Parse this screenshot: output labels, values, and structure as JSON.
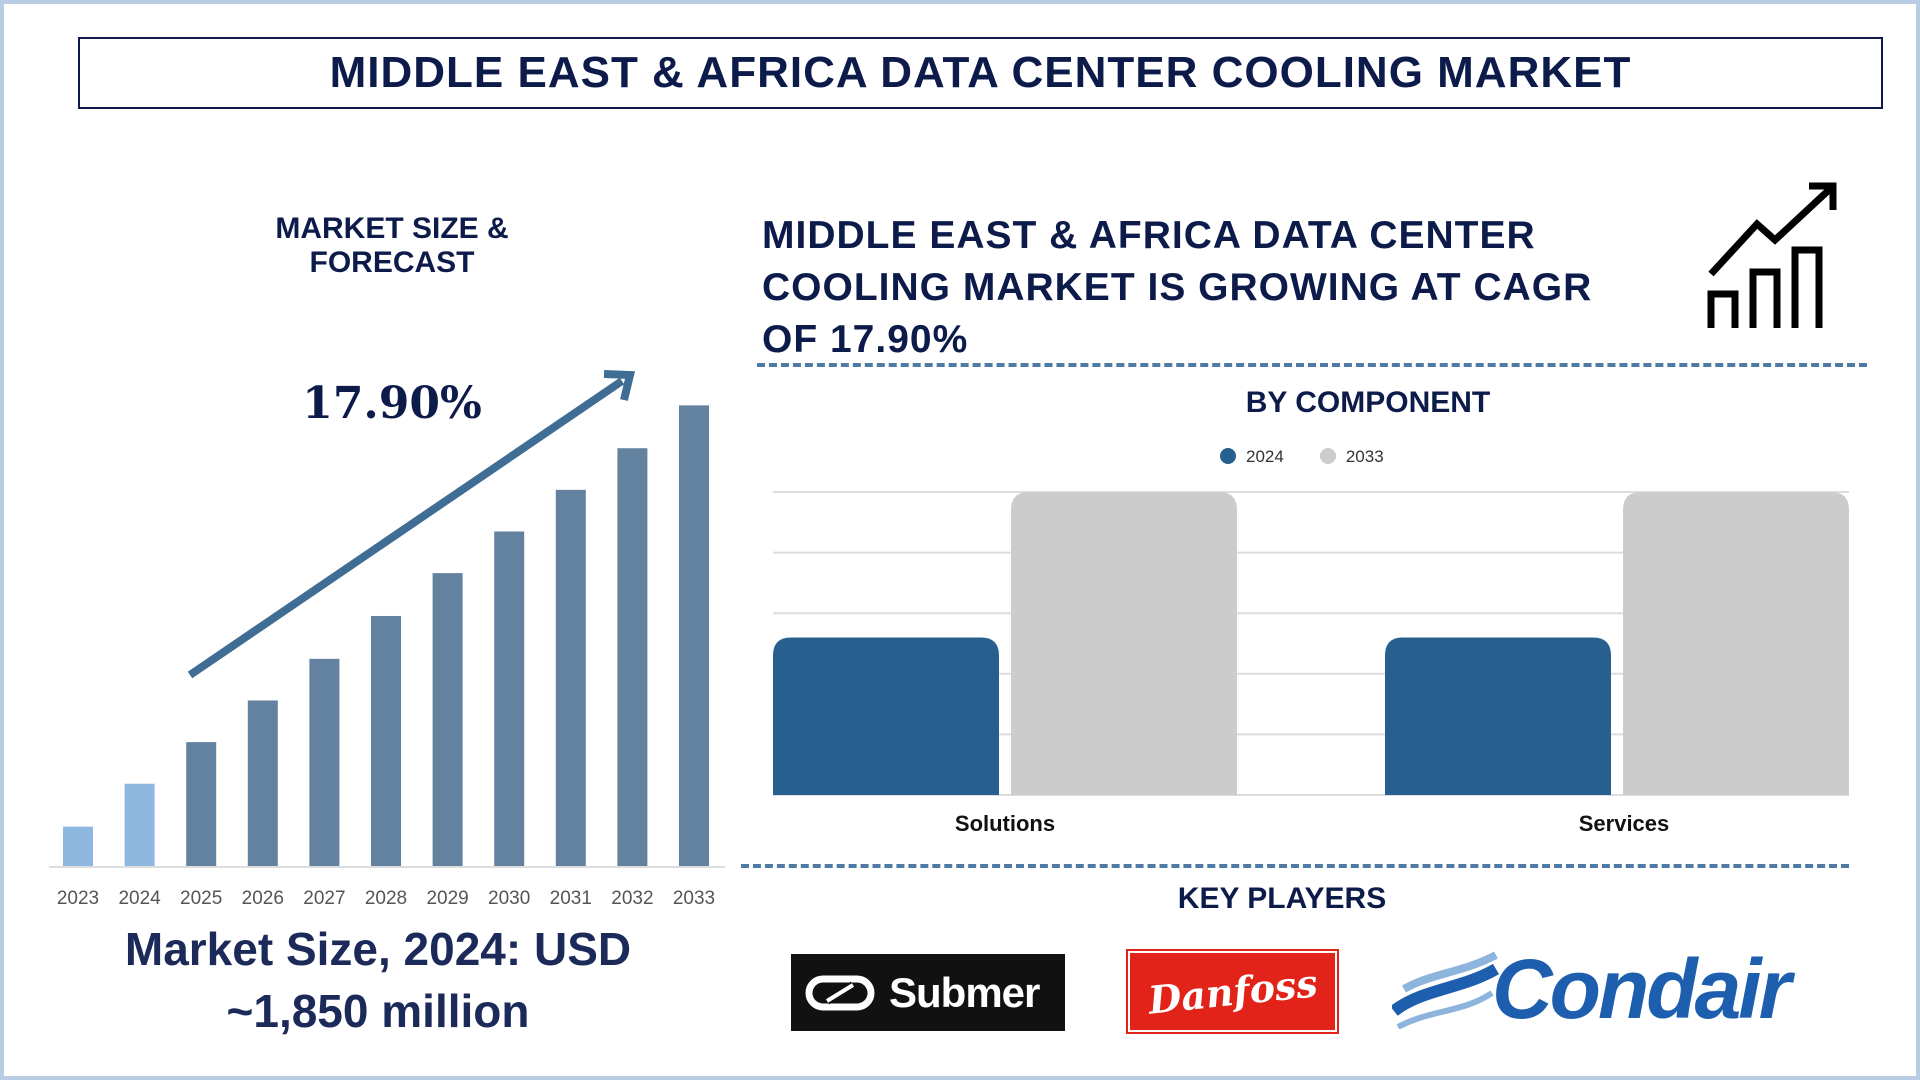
{
  "title": "MIDDLE EAST & AFRICA DATA CENTER COOLING MARKET",
  "left": {
    "heading": "MARKET SIZE & FORECAST",
    "cagr_label": "17.90%",
    "market_size_line1": "Market Size, 2024: USD",
    "market_size_line2": "~1,850 million"
  },
  "right": {
    "heading_lines": [
      "MIDDLE EAST & AFRICA DATA CENTER",
      "COOLING MARKET IS GROWING AT CAGR",
      "OF 17.90%"
    ],
    "icon": "growth-chart-arrow-icon",
    "key_players_heading": "KEY PLAYERS",
    "key_players": [
      "Submer",
      "Danfoss",
      "Condair"
    ]
  },
  "chart_data": [
    {
      "type": "bar",
      "title": "MARKET SIZE & FORECAST",
      "categories": [
        "2023",
        "2024",
        "2025",
        "2026",
        "2027",
        "2028",
        "2029",
        "2030",
        "2031",
        "2032",
        "2033"
      ],
      "values": [
        33,
        68,
        102,
        136,
        170,
        205,
        240,
        274,
        308,
        342,
        377
      ],
      "note_colors": {
        "historic": "#8fb8e0",
        "forecast": "#62829f"
      },
      "grid": false
    },
    {
      "type": "bar",
      "title": "BY COMPONENT",
      "categories": [
        "Solutions",
        "Services"
      ],
      "series": [
        {
          "name": "2024",
          "values": [
            2.6,
            2.6
          ],
          "color": "#27608e"
        },
        {
          "name": "2033",
          "values": [
            5.0,
            5.0
          ],
          "color": "#cccccc"
        }
      ],
      "ylim": [
        0,
        5
      ],
      "grid": true,
      "legend": "top-center"
    }
  ]
}
